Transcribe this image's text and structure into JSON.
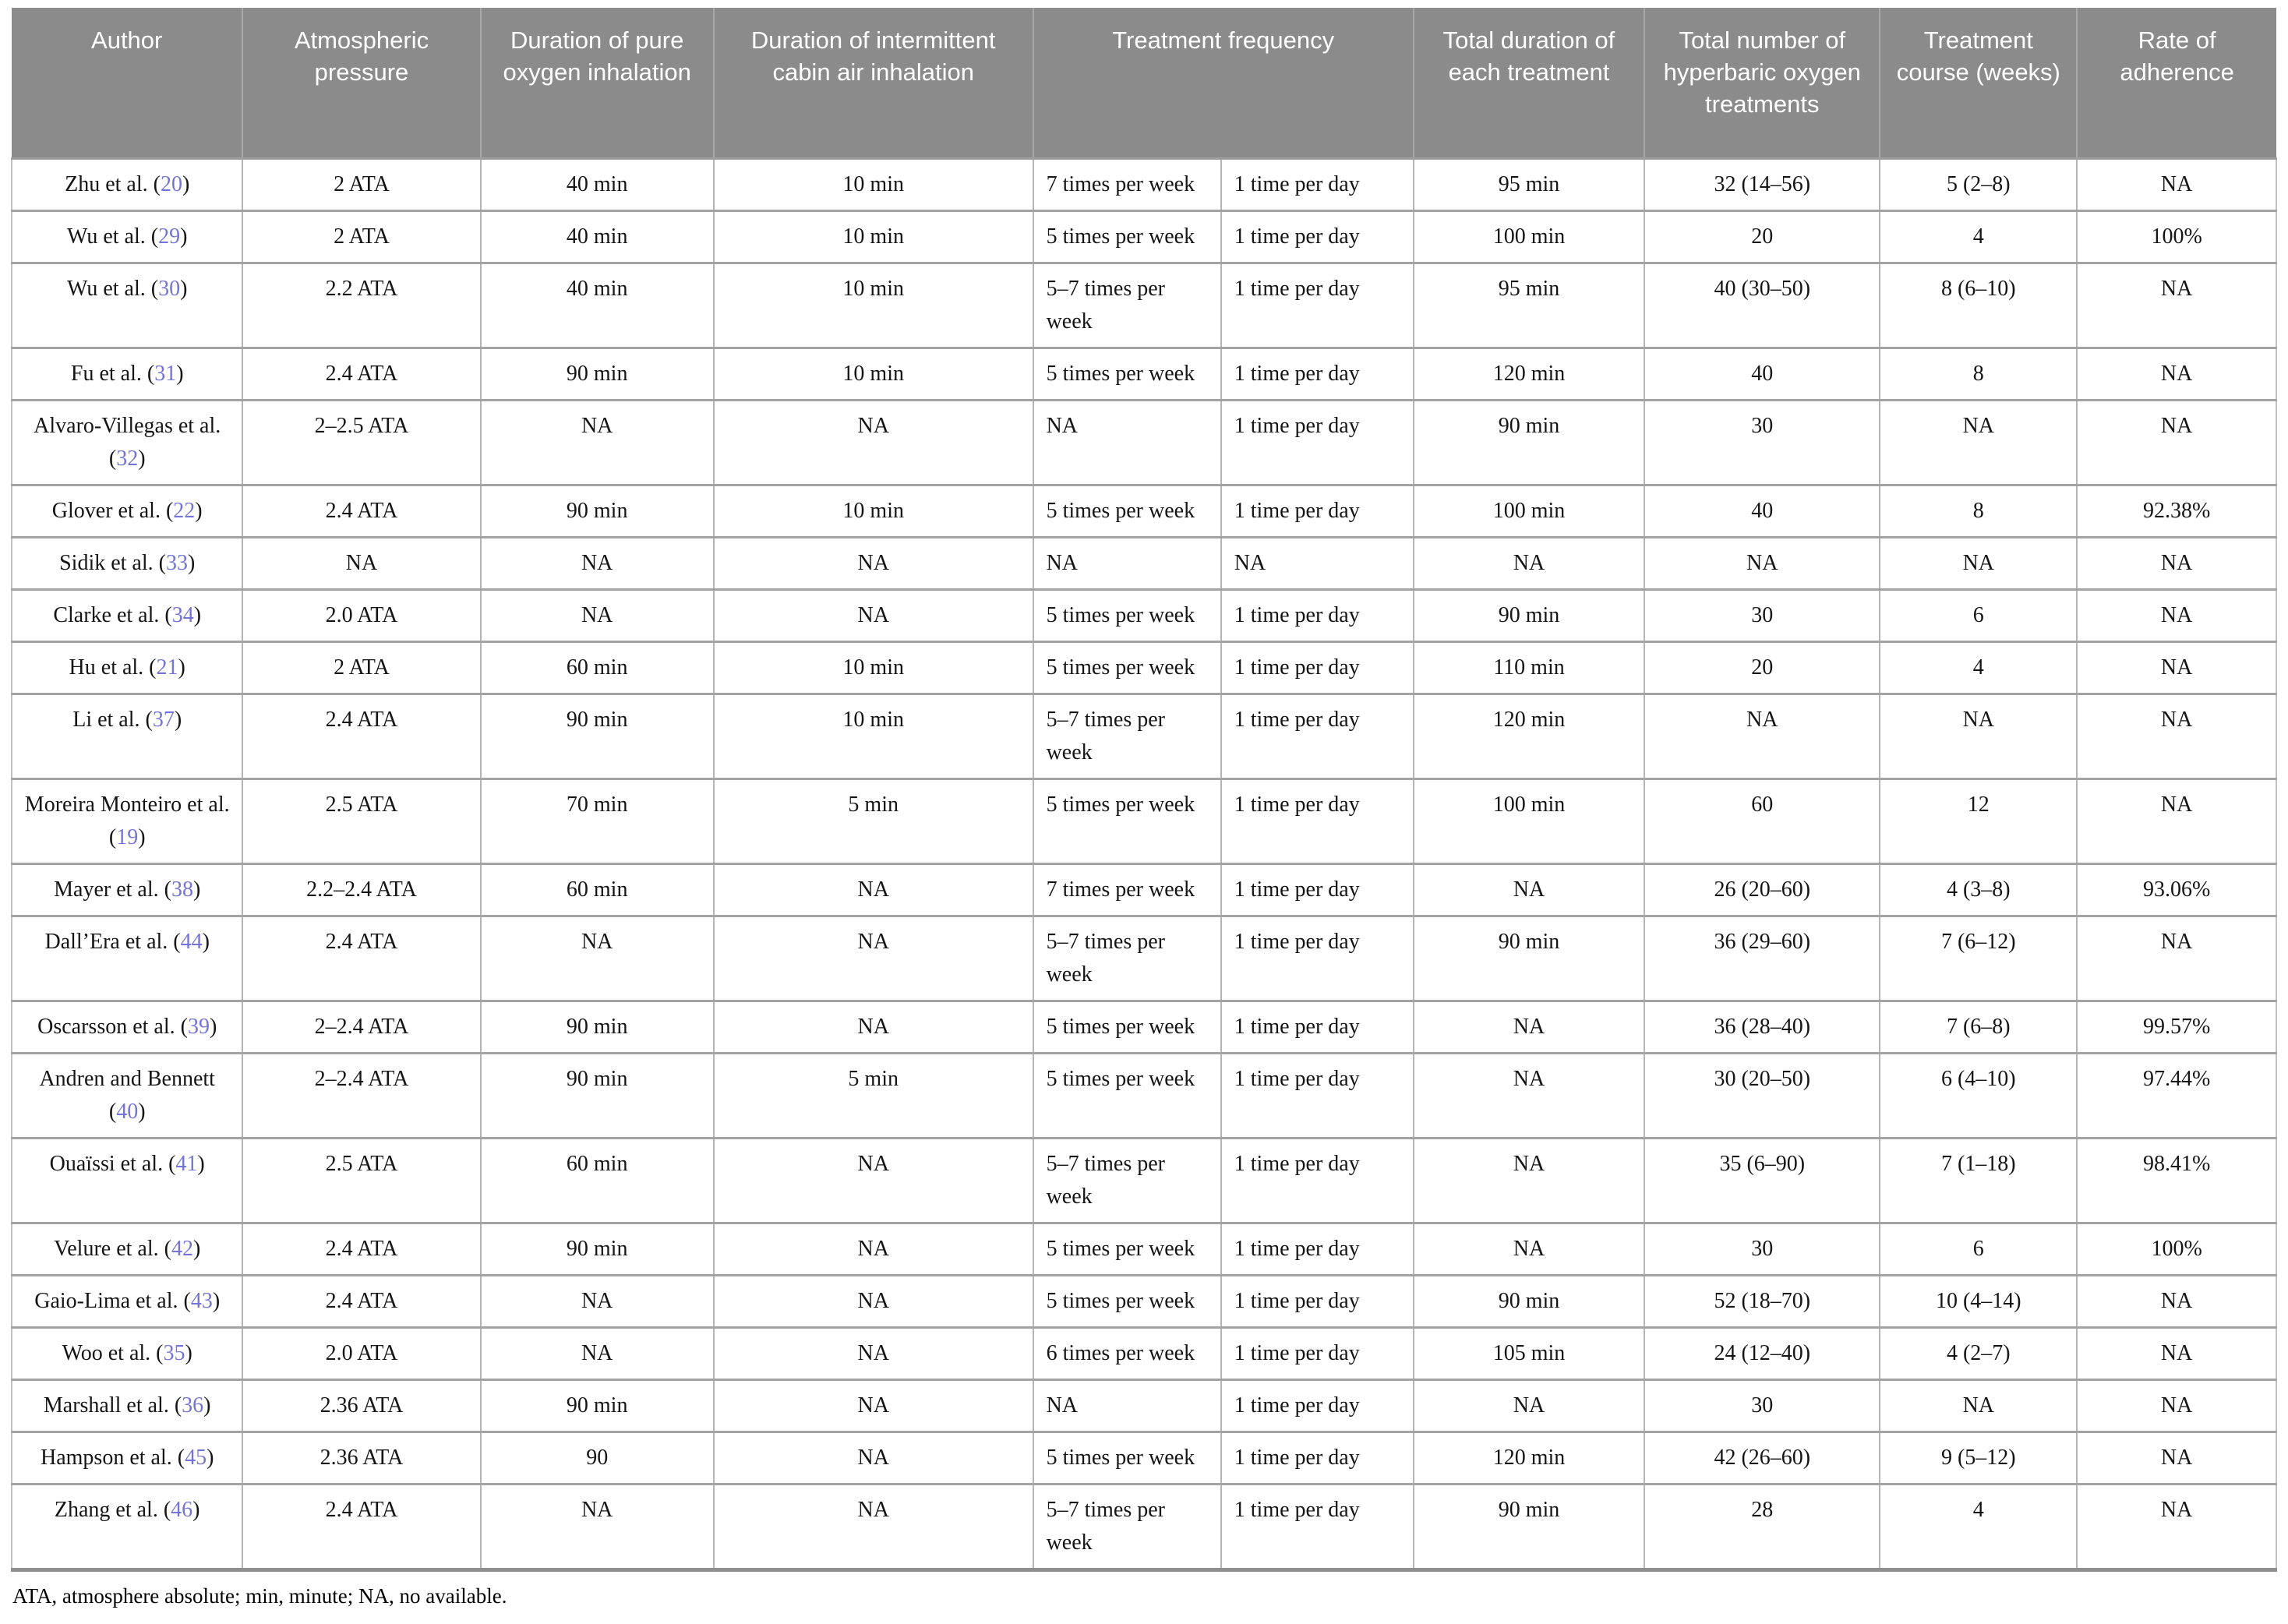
{
  "table": {
    "ref_open": "(",
    "ref_close": ")",
    "header": {
      "author": "Author",
      "pressure": "Atmospheric pressure",
      "o2": "Duration of pure oxygen inhalation",
      "air": "Duration of intermittent cabin air inhalation",
      "freq": "Treatment frequency",
      "duration": "Total duration of each treatment",
      "total": "Total number of hyperbaric oxygen treatments",
      "course": "Treatment course (weeks)",
      "adherence": "Rate of adherence"
    },
    "rows": [
      {
        "author": "Zhu et al.",
        "ref": "20",
        "pressure": "2 ATA",
        "o2": "40 min",
        "air": "10 min",
        "freq_week": "7 times per week",
        "freq_day": "1 time per day",
        "duration": "95 min",
        "total": "32 (14–56)",
        "course": "5 (2–8)",
        "adherence": "NA"
      },
      {
        "author": "Wu et al.",
        "ref": "29",
        "pressure": "2 ATA",
        "o2": "40 min",
        "air": "10 min",
        "freq_week": "5 times per week",
        "freq_day": "1 time per day",
        "duration": "100 min",
        "total": "20",
        "course": "4",
        "adherence": "100%"
      },
      {
        "author": "Wu et al.",
        "ref": "30",
        "pressure": "2.2 ATA",
        "o2": "40 min",
        "air": "10 min",
        "freq_week": "5–7 times per week",
        "freq_day": "1 time per day",
        "duration": "95 min",
        "total": "40 (30–50)",
        "course": "8 (6–10)",
        "adherence": "NA"
      },
      {
        "author": "Fu et al.",
        "ref": "31",
        "pressure": "2.4 ATA",
        "o2": "90 min",
        "air": "10 min",
        "freq_week": "5 times per week",
        "freq_day": "1 time per day",
        "duration": "120 min",
        "total": "40",
        "course": "8",
        "adherence": "NA"
      },
      {
        "author": "Alvaro-Villegas et al.",
        "ref": "32",
        "pressure": "2–2.5 ATA",
        "o2": "NA",
        "air": "NA",
        "freq_week": "NA",
        "freq_day": "1 time per day",
        "duration": "90 min",
        "total": "30",
        "course": "NA",
        "adherence": "NA"
      },
      {
        "author": "Glover et al.",
        "ref": "22",
        "pressure": "2.4 ATA",
        "o2": "90 min",
        "air": "10 min",
        "freq_week": "5 times per week",
        "freq_day": "1 time per day",
        "duration": "100 min",
        "total": "40",
        "course": "8",
        "adherence": "92.38%"
      },
      {
        "author": "Sidik et al.",
        "ref": "33",
        "pressure": "NA",
        "o2": "NA",
        "air": "NA",
        "freq_week": "NA",
        "freq_day": "NA",
        "duration": "NA",
        "total": "NA",
        "course": "NA",
        "adherence": "NA"
      },
      {
        "author": "Clarke et al.",
        "ref": "34",
        "pressure": "2.0 ATA",
        "o2": "NA",
        "air": "NA",
        "freq_week": "5 times per week",
        "freq_day": "1 time per day",
        "duration": "90 min",
        "total": "30",
        "course": "6",
        "adherence": "NA"
      },
      {
        "author": "Hu et al.",
        "ref": "21",
        "pressure": "2 ATA",
        "o2": "60 min",
        "air": "10 min",
        "freq_week": "5 times per week",
        "freq_day": "1 time per day",
        "duration": "110 min",
        "total": "20",
        "course": "4",
        "adherence": "NA"
      },
      {
        "author": "Li et al.",
        "ref": "37",
        "pressure": "2.4 ATA",
        "o2": "90 min",
        "air": "10 min",
        "freq_week": "5–7 times per week",
        "freq_day": "1 time per day",
        "duration": "120 min",
        "total": "NA",
        "course": "NA",
        "adherence": "NA"
      },
      {
        "author": "Moreira Monteiro et al.",
        "ref": "19",
        "pressure": "2.5 ATA",
        "o2": "70 min",
        "air": "5 min",
        "freq_week": "5 times per week",
        "freq_day": "1 time per day",
        "duration": "100 min",
        "total": "60",
        "course": "12",
        "adherence": "NA"
      },
      {
        "author": "Mayer et al.",
        "ref": "38",
        "pressure": "2.2–2.4 ATA",
        "o2": "60 min",
        "air": "NA",
        "freq_week": "7 times per week",
        "freq_day": "1 time per day",
        "duration": "NA",
        "total": "26 (20–60)",
        "course": "4 (3–8)",
        "adherence": "93.06%"
      },
      {
        "author": "Dall’Era et al.",
        "ref": "44",
        "pressure": "2.4 ATA",
        "o2": "NA",
        "air": "NA",
        "freq_week": "5–7 times per week",
        "freq_day": "1 time per day",
        "duration": "90 min",
        "total": "36 (29–60)",
        "course": "7 (6–12)",
        "adherence": "NA"
      },
      {
        "author": "Oscarsson et al.",
        "ref": "39",
        "pressure": "2–2.4 ATA",
        "o2": "90 min",
        "air": "NA",
        "freq_week": "5 times per week",
        "freq_day": "1 time per day",
        "duration": "NA",
        "total": "36 (28–40)",
        "course": "7 (6–8)",
        "adherence": "99.57%"
      },
      {
        "author": "Andren and Bennett",
        "ref": "40",
        "pressure": "2–2.4 ATA",
        "o2": "90 min",
        "air": "5 min",
        "freq_week": "5 times per week",
        "freq_day": "1 time per day",
        "duration": "NA",
        "total": "30 (20–50)",
        "course": "6 (4–10)",
        "adherence": "97.44%"
      },
      {
        "author": "Ouaïssi et al.",
        "ref": "41",
        "pressure": "2.5 ATA",
        "o2": "60 min",
        "air": "NA",
        "freq_week": "5–7 times per week",
        "freq_day": "1 time per day",
        "duration": "NA",
        "total": "35 (6–90)",
        "course": "7 (1–18)",
        "adherence": "98.41%"
      },
      {
        "author": "Velure et al.",
        "ref": "42",
        "pressure": "2.4 ATA",
        "o2": "90 min",
        "air": "NA",
        "freq_week": "5 times per week",
        "freq_day": "1 time per day",
        "duration": "NA",
        "total": "30",
        "course": "6",
        "adherence": "100%"
      },
      {
        "author": "Gaio-Lima et al.",
        "ref": "43",
        "pressure": "2.4 ATA",
        "o2": "NA",
        "air": "NA",
        "freq_week": "5 times per week",
        "freq_day": "1 time per day",
        "duration": "90 min",
        "total": "52 (18–70)",
        "course": "10 (4–14)",
        "adherence": "NA"
      },
      {
        "author": "Woo et al.",
        "ref": "35",
        "pressure": "2.0 ATA",
        "o2": "NA",
        "air": "NA",
        "freq_week": "6 times per week",
        "freq_day": "1 time per day",
        "duration": "105 min",
        "total": "24 (12–40)",
        "course": "4 (2–7)",
        "adherence": "NA"
      },
      {
        "author": "Marshall et al.",
        "ref": "36",
        "pressure": "2.36 ATA",
        "o2": "90 min",
        "air": "NA",
        "freq_week": "NA",
        "freq_day": "1 time per day",
        "duration": "NA",
        "total": "30",
        "course": "NA",
        "adherence": "NA"
      },
      {
        "author": "Hampson et al.",
        "ref": "45",
        "pressure": "2.36 ATA",
        "o2": "90",
        "air": "NA",
        "freq_week": "5 times per week",
        "freq_day": "1 time per day",
        "duration": "120 min",
        "total": "42 (26–60)",
        "course": "9 (5–12)",
        "adherence": "NA"
      },
      {
        "author": "Zhang et al.",
        "ref": "46",
        "pressure": "2.4 ATA",
        "o2": "NA",
        "air": "NA",
        "freq_week": "5–7 times per week",
        "freq_day": "1 time per day",
        "duration": "90 min",
        "total": "28",
        "course": "4",
        "adherence": "NA"
      }
    ],
    "footnote": "ATA, atmosphere absolute; min, minute; NA, no available.",
    "colors": {
      "header_bg": "#8b8b8b",
      "header_text": "#ffffff",
      "reference_link": "#7474d8",
      "grid_horizontal": "#a3a3a3",
      "grid_vertical": "#b5b5b5",
      "body_text": "#151515"
    }
  }
}
